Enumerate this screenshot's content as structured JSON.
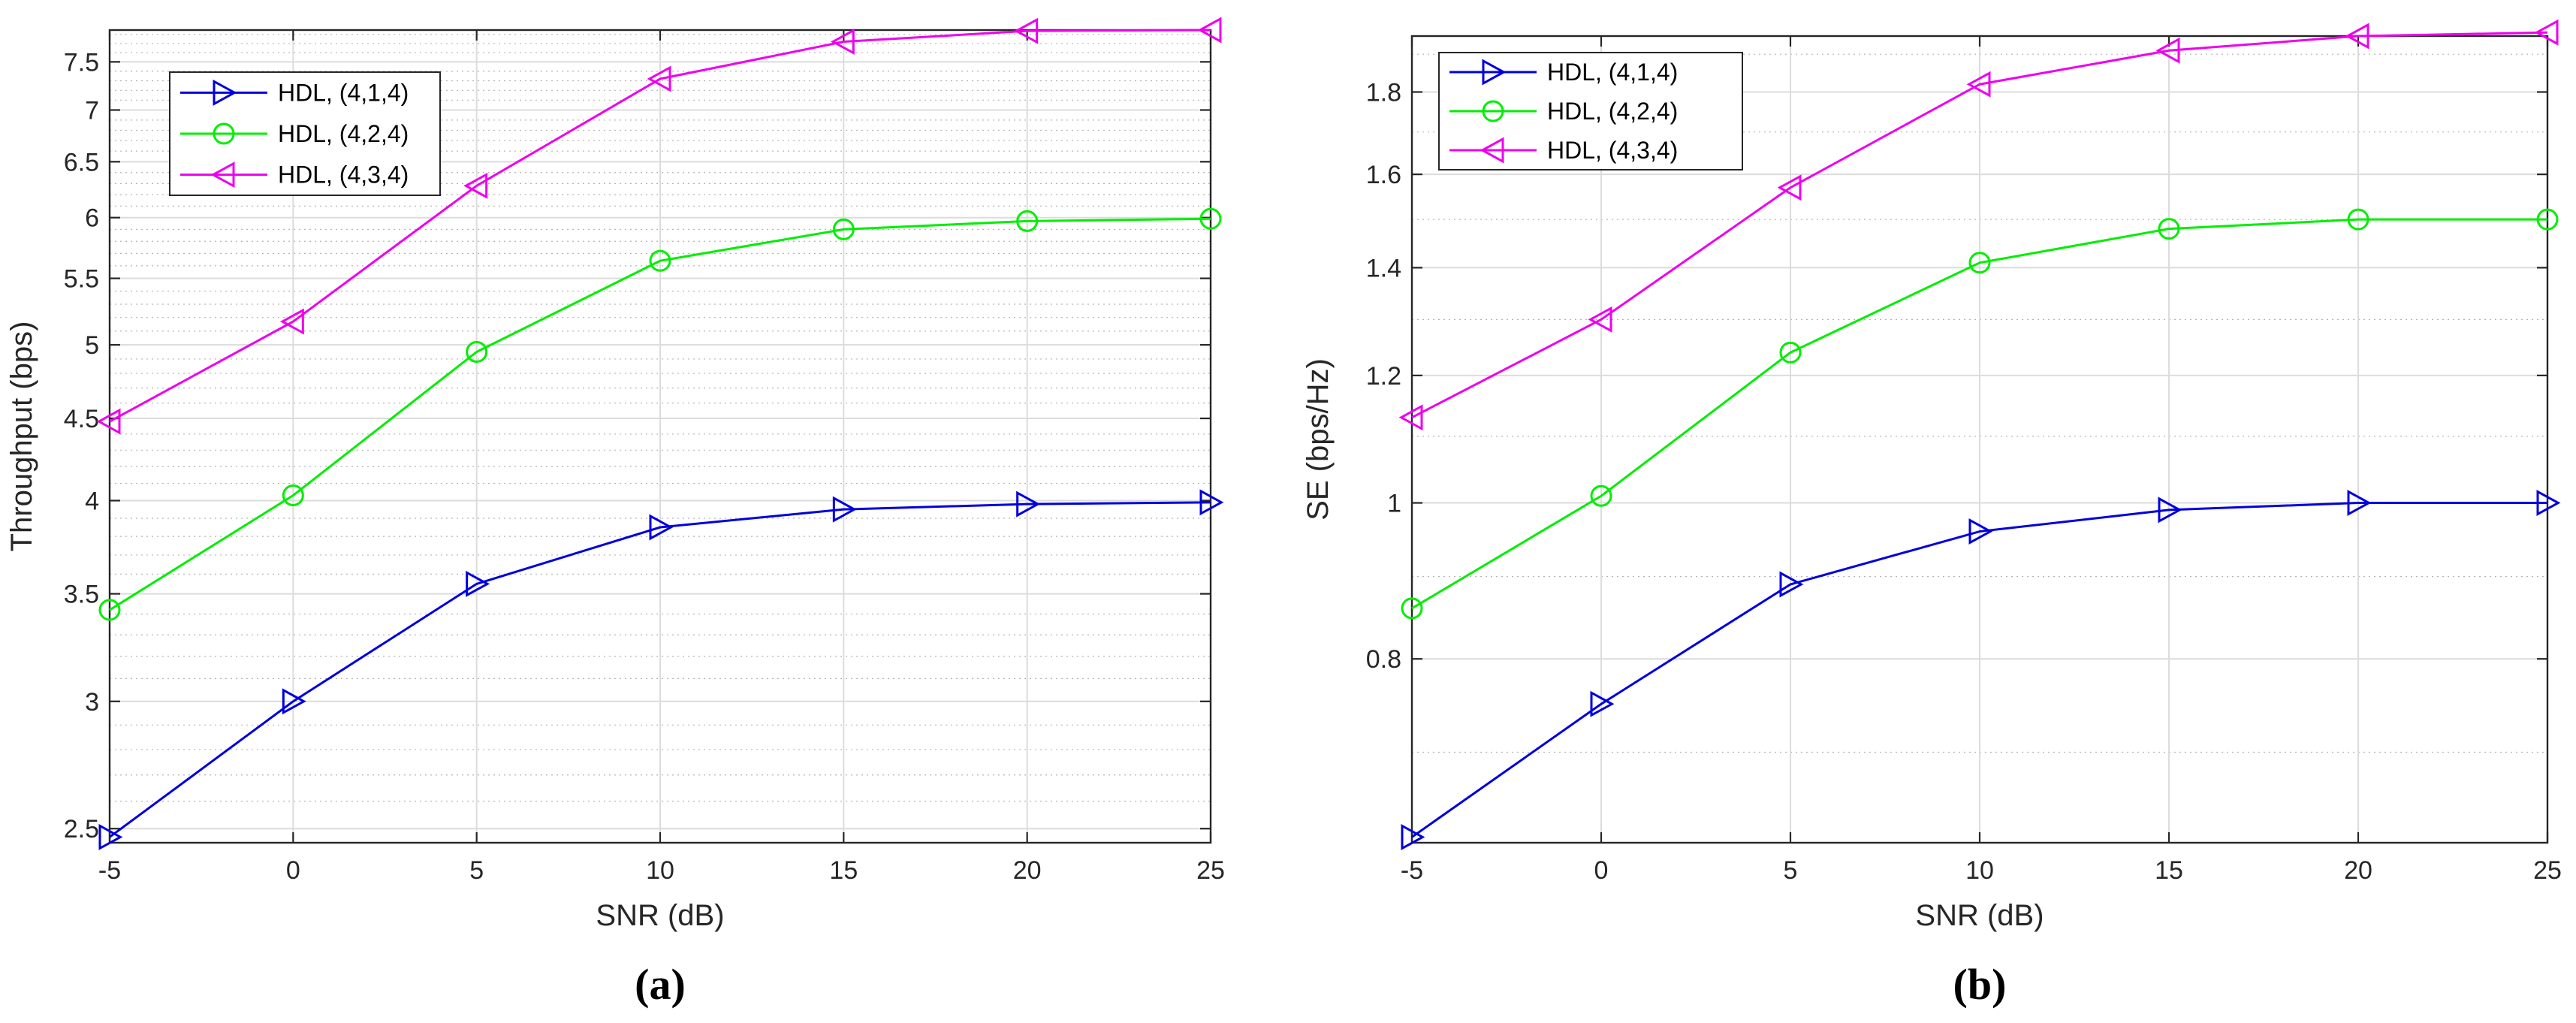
{
  "chart_data": [
    {
      "type": "line",
      "panel": "a",
      "caption": "(a)",
      "title": "",
      "xlabel": "SNR (dB)",
      "ylabel": "Throughput (bps)",
      "yscale": "log",
      "x": [
        -5,
        0,
        5,
        10,
        15,
        20,
        25
      ],
      "xlim": [
        -5,
        25
      ],
      "ylim": [
        2.45,
        7.85
      ],
      "xticks": [
        -5,
        0,
        5,
        10,
        15,
        20,
        25
      ],
      "xtick_labels": [
        "-5",
        "0",
        "5",
        "10",
        "15",
        "20",
        "25"
      ],
      "yticks": [
        2.5,
        3,
        3.5,
        4,
        4.5,
        5,
        5.5,
        6,
        6.5,
        7,
        7.5
      ],
      "ytick_labels": [
        "2.5",
        "3",
        "3.5",
        "4",
        "4.5",
        "5",
        "5.5",
        "6",
        "6.5",
        "7",
        "7.5"
      ],
      "grid": true,
      "legend_position": "top-left",
      "series": [
        {
          "name": "HDL, (4,1,4)",
          "color": "#0000dd",
          "marker": "triangle-right",
          "values": [
            2.47,
            3.0,
            3.55,
            3.85,
            3.95,
            3.98,
            3.99
          ]
        },
        {
          "name": "HDL, (4,2,4)",
          "color": "#00ee00",
          "marker": "circle",
          "values": [
            3.42,
            4.03,
            4.95,
            5.64,
            5.9,
            5.97,
            5.99
          ]
        },
        {
          "name": "HDL, (4,3,4)",
          "color": "#ee00ee",
          "marker": "triangle-left",
          "values": [
            4.48,
            5.17,
            6.28,
            7.32,
            7.72,
            7.84,
            7.85
          ]
        }
      ]
    },
    {
      "type": "line",
      "panel": "b",
      "caption": "(b)",
      "title": "",
      "xlabel": "SNR (dB)",
      "ylabel": "SE (bps/Hz)",
      "yscale": "log",
      "x": [
        -5,
        0,
        5,
        10,
        15,
        20,
        25
      ],
      "xlim": [
        -5,
        25
      ],
      "ylim": [
        0.615,
        1.95
      ],
      "xticks": [
        -5,
        0,
        5,
        10,
        15,
        20,
        25
      ],
      "xtick_labels": [
        "-5",
        "0",
        "5",
        "10",
        "15",
        "20",
        "25"
      ],
      "yticks": [
        0.8,
        1.0,
        1.2,
        1.4,
        1.6,
        1.8
      ],
      "ytick_labels": [
        "0.8",
        "1",
        "1.2",
        "1.4",
        "1.6",
        "1.8"
      ],
      "grid": true,
      "legend_position": "top-left",
      "series": [
        {
          "name": "HDL, (4,1,4)",
          "color": "#0000dd",
          "marker": "triangle-right",
          "values": [
            0.62,
            0.75,
            0.89,
            0.96,
            0.99,
            1.0,
            1.0
          ]
        },
        {
          "name": "HDL, (4,2,4)",
          "color": "#00ee00",
          "marker": "circle",
          "values": [
            0.86,
            1.01,
            1.24,
            1.41,
            1.48,
            1.5,
            1.5
          ]
        },
        {
          "name": "HDL, (4,3,4)",
          "color": "#ee00ee",
          "marker": "triangle-left",
          "values": [
            1.13,
            1.3,
            1.57,
            1.82,
            1.91,
            1.95,
            1.96
          ]
        }
      ]
    }
  ]
}
